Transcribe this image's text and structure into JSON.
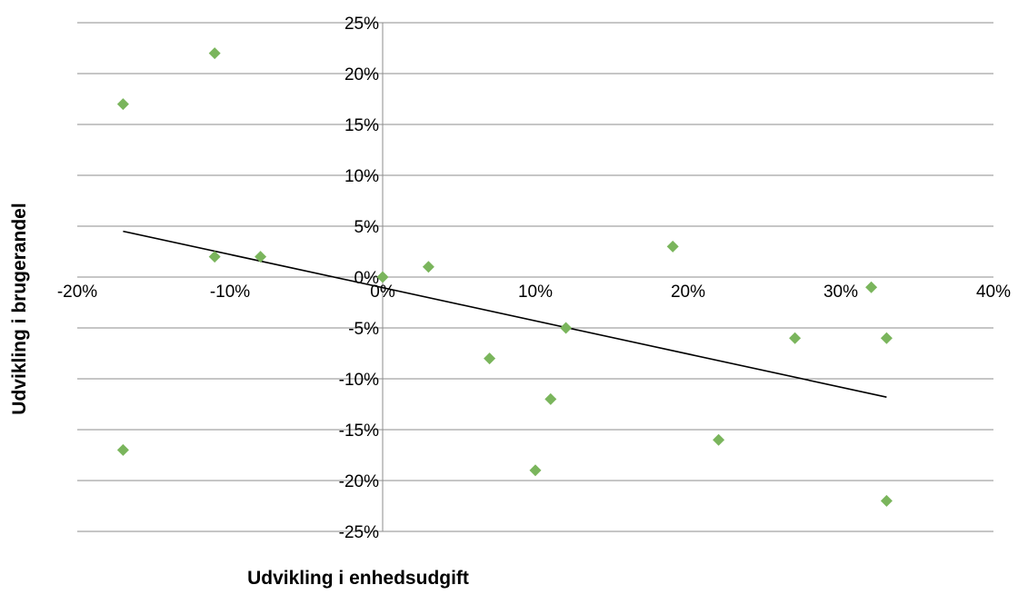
{
  "chart_data": {
    "type": "scatter",
    "title": "",
    "xlabel": "Udvikling i enhedsudgift",
    "ylabel": "Udvikling i brugerandel",
    "x_unit": "%",
    "y_unit": "%",
    "xlim": [
      -20,
      40
    ],
    "ylim": [
      -25,
      25
    ],
    "x_ticks": [
      -20,
      -10,
      0,
      10,
      20,
      30,
      40
    ],
    "y_ticks": [
      25,
      20,
      15,
      10,
      5,
      0,
      -5,
      -10,
      -15,
      -20,
      -25
    ],
    "x_tick_labels": [
      "-20%",
      "-10%",
      "0%",
      "10%",
      "20%",
      "30%",
      "40%"
    ],
    "y_tick_labels": [
      "25%",
      "20%",
      "15%",
      "10%",
      "5%",
      "0%",
      "-5%",
      "-10%",
      "-15%",
      "-20%",
      "-25%"
    ],
    "grid": true,
    "legend": "none",
    "marker": "diamond",
    "marker_color": "#7ab55c",
    "trendline": {
      "type": "linear",
      "color": "#000000",
      "x_start": -17,
      "y_start": 4.5,
      "x_end": 33,
      "y_end": -11.8
    },
    "points": [
      {
        "x": -17,
        "y": 17
      },
      {
        "x": -11,
        "y": 22
      },
      {
        "x": -17,
        "y": -17
      },
      {
        "x": -11,
        "y": 2
      },
      {
        "x": -8,
        "y": 2
      },
      {
        "x": 0,
        "y": 0
      },
      {
        "x": 3,
        "y": 1
      },
      {
        "x": 7,
        "y": -8
      },
      {
        "x": 10,
        "y": -19
      },
      {
        "x": 11,
        "y": -12
      },
      {
        "x": 12,
        "y": -5
      },
      {
        "x": 19,
        "y": 3
      },
      {
        "x": 22,
        "y": -16
      },
      {
        "x": 27,
        "y": -6
      },
      {
        "x": 32,
        "y": -1
      },
      {
        "x": 33,
        "y": -6
      },
      {
        "x": 33,
        "y": -22
      }
    ]
  }
}
